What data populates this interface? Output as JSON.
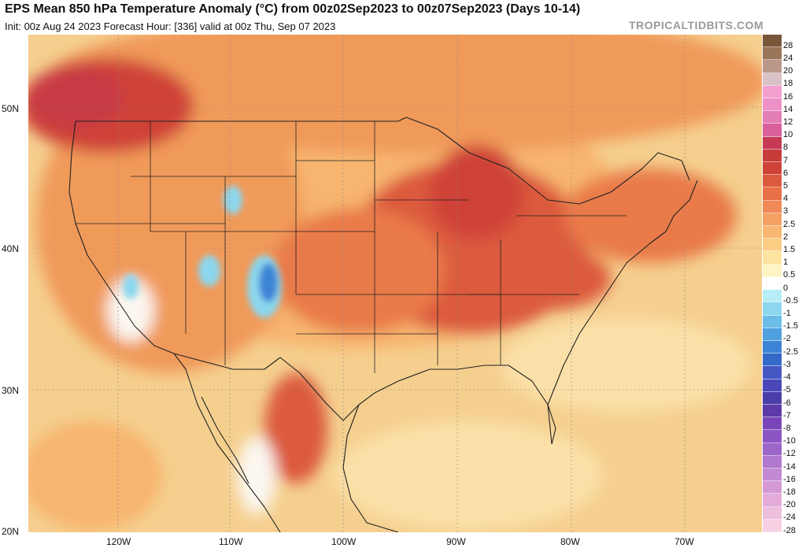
{
  "header": {
    "title": "EPS Mean 850 hPa Temperature Anomaly (°C) from 00z02Sep2023 to 00z07Sep2023 (Days 10-14)",
    "subtitle": "Init: 00z Aug 24 2023   Forecast Hour: [336]   valid at 00z Thu, Sep 07 2023",
    "credit": "TROPICALTIDBITS.COM"
  },
  "axes": {
    "lat_labels": [
      "50N",
      "40N",
      "30N",
      "20N"
    ],
    "lon_labels": [
      "120W",
      "110W",
      "100W",
      "90W",
      "80W",
      "70W"
    ]
  },
  "colorbar": {
    "labels": [
      "28",
      "24",
      "20",
      "18",
      "16",
      "14",
      "12",
      "10",
      "8",
      "7",
      "6",
      "5",
      "4",
      "3",
      "2.5",
      "2",
      "1.5",
      "1",
      "0.5",
      "0",
      "-0.5",
      "-1",
      "-1.5",
      "-2",
      "-2.5",
      "-3",
      "-4",
      "-5",
      "-6",
      "-7",
      "-8",
      "-10",
      "-12",
      "-14",
      "-16",
      "-18",
      "-20",
      "-24",
      "-28"
    ],
    "colors": [
      "#7a5638",
      "#9b7558",
      "#b9988a",
      "#d9c1c8",
      "#f59fd0",
      "#ee91c8",
      "#e47eb6",
      "#d9609a",
      "#c73a55",
      "#c83b3b",
      "#cf4238",
      "#db5a3e",
      "#e96f47",
      "#f08a56",
      "#f5a164",
      "#f8b772",
      "#fbcd84",
      "#fde49f",
      "#fff4c4",
      "#ffffff",
      "#b6eef5",
      "#8cd7ee",
      "#6bbde8",
      "#50a0e0",
      "#3d84d6",
      "#3569c8",
      "#4657c4",
      "#4a47b8",
      "#4b3ea9",
      "#5c3aa8",
      "#7a45b8",
      "#8c55c4",
      "#9c66c9",
      "#b078cf",
      "#c389d2",
      "#d59ad6",
      "#e3acda",
      "#eebede",
      "#f7d0e4"
    ]
  },
  "map_colors": {
    "base": "#f5cf8e",
    "light": "#fae0a8",
    "warm1": "#f7b56f",
    "warm2": "#f09a5a",
    "warm3": "#e97a48",
    "hot": "#dc5a3d",
    "hotter": "#cf4238",
    "hottest": "#c73a45",
    "cool_blue": "#8cd7ee",
    "cold_blue": "#3d84d6",
    "white": "#fbf7f0",
    "line": "#222222",
    "grid": "#888888"
  }
}
